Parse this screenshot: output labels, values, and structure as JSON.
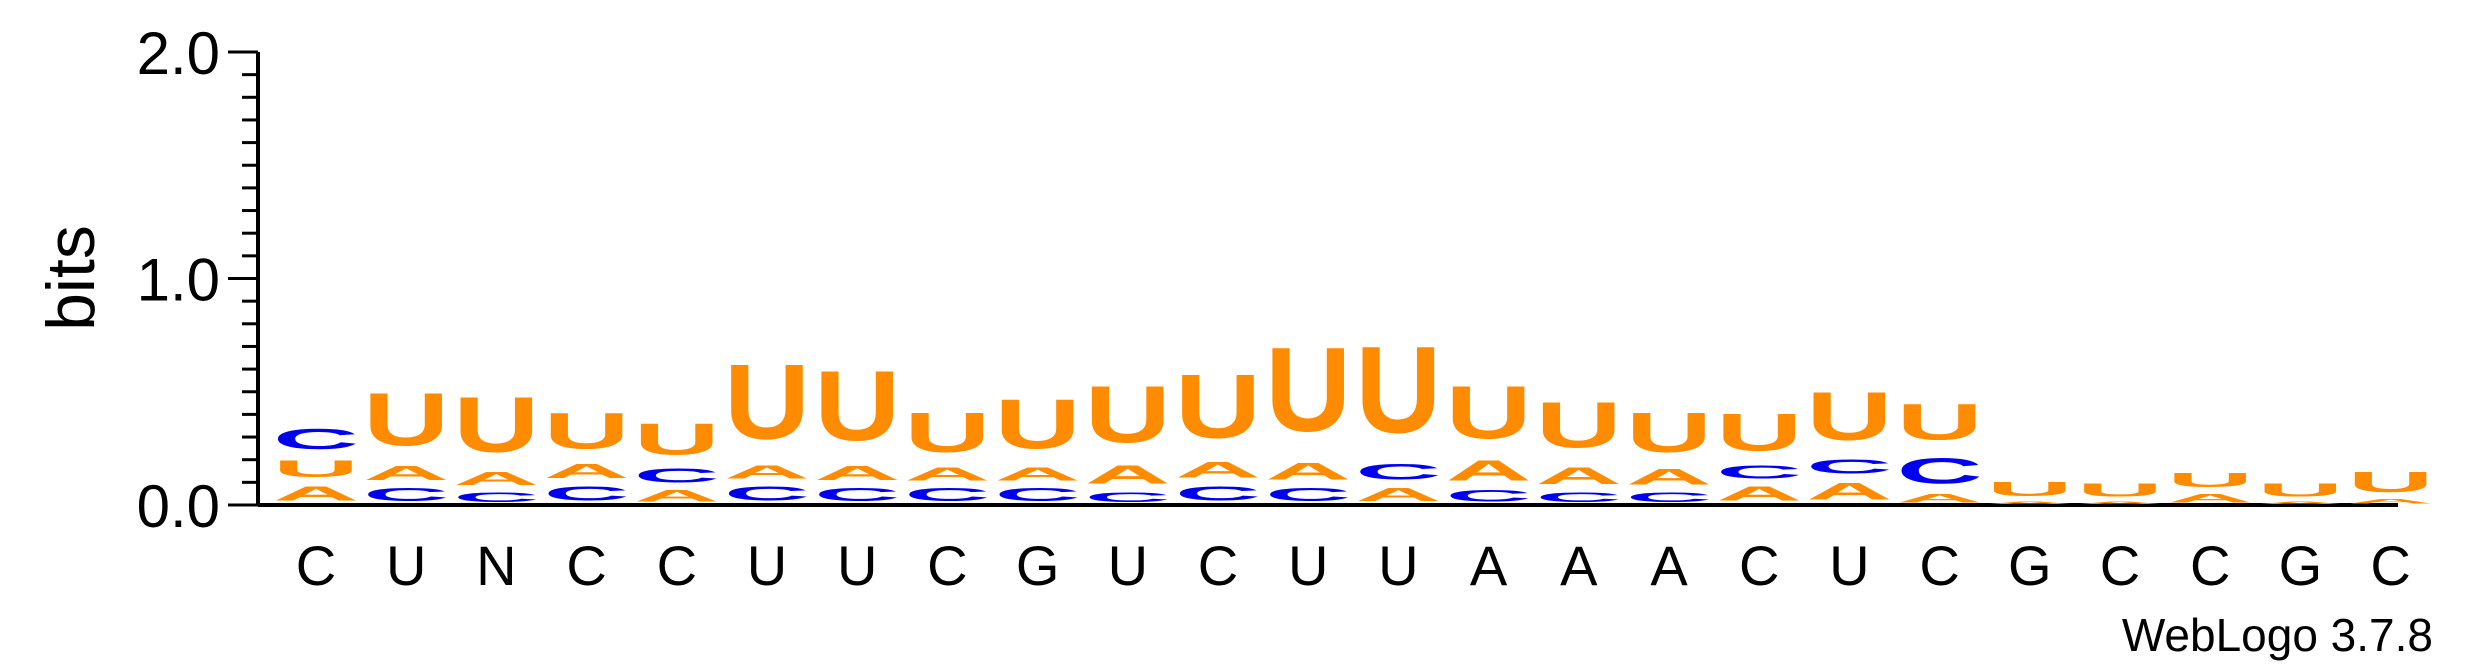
{
  "chart_data": {
    "type": "sequence-logo",
    "ylabel": "bits",
    "ylim": [
      0,
      2.0
    ],
    "yticks": [
      "0.0",
      "1.0",
      "2.0"
    ],
    "colors": {
      "U": "#ff8c00",
      "A": "#ff8c00",
      "C": "#0000ee",
      "G": "#ff8c00",
      "N": "#ff8c00"
    },
    "positions": [
      {
        "consensus": "C",
        "stack": [
          {
            "l": "A",
            "h": 0.1
          },
          {
            "l": "U",
            "h": 0.12
          },
          {
            "l": "C",
            "h": 0.14
          }
        ]
      },
      {
        "consensus": "U",
        "stack": [
          {
            "l": "C",
            "h": 0.09
          },
          {
            "l": "A",
            "h": 0.1
          },
          {
            "l": "U",
            "h": 0.37
          }
        ]
      },
      {
        "consensus": "N",
        "stack": [
          {
            "l": "C",
            "h": 0.07
          },
          {
            "l": "A",
            "h": 0.09
          },
          {
            "l": "U",
            "h": 0.39
          }
        ]
      },
      {
        "consensus": "C",
        "stack": [
          {
            "l": "C",
            "h": 0.1
          },
          {
            "l": "A",
            "h": 0.1
          },
          {
            "l": "U",
            "h": 0.25
          }
        ]
      },
      {
        "consensus": "C",
        "stack": [
          {
            "l": "A",
            "h": 0.08
          },
          {
            "l": "C",
            "h": 0.1
          },
          {
            "l": "U",
            "h": 0.22
          }
        ]
      },
      {
        "consensus": "U",
        "stack": [
          {
            "l": "C",
            "h": 0.1
          },
          {
            "l": "A",
            "h": 0.09
          },
          {
            "l": "U",
            "h": 0.53
          }
        ]
      },
      {
        "consensus": "U",
        "stack": [
          {
            "l": "C",
            "h": 0.09
          },
          {
            "l": "A",
            "h": 0.1
          },
          {
            "l": "U",
            "h": 0.49
          }
        ]
      },
      {
        "consensus": "C",
        "stack": [
          {
            "l": "C",
            "h": 0.09
          },
          {
            "l": "A",
            "h": 0.09
          },
          {
            "l": "U",
            "h": 0.28
          }
        ]
      },
      {
        "consensus": "G",
        "stack": [
          {
            "l": "C",
            "h": 0.09
          },
          {
            "l": "A",
            "h": 0.09
          },
          {
            "l": "U",
            "h": 0.35
          }
        ]
      },
      {
        "consensus": "U",
        "stack": [
          {
            "l": "C",
            "h": 0.07
          },
          {
            "l": "A",
            "h": 0.13
          },
          {
            "l": "U",
            "h": 0.4
          }
        ]
      },
      {
        "consensus": "C",
        "stack": [
          {
            "l": "C",
            "h": 0.1
          },
          {
            "l": "A",
            "h": 0.11
          },
          {
            "l": "U",
            "h": 0.45
          }
        ]
      },
      {
        "consensus": "U",
        "stack": [
          {
            "l": "C",
            "h": 0.09
          },
          {
            "l": "A",
            "h": 0.12
          },
          {
            "l": "U",
            "h": 0.59
          }
        ]
      },
      {
        "consensus": "U",
        "stack": [
          {
            "l": "A",
            "h": 0.09
          },
          {
            "l": "C",
            "h": 0.11
          },
          {
            "l": "U",
            "h": 0.61
          }
        ]
      },
      {
        "consensus": "A",
        "stack": [
          {
            "l": "C",
            "h": 0.08
          },
          {
            "l": "A",
            "h": 0.14
          },
          {
            "l": "U",
            "h": 0.37
          }
        ]
      },
      {
        "consensus": "A",
        "stack": [
          {
            "l": "C",
            "h": 0.07
          },
          {
            "l": "A",
            "h": 0.12
          },
          {
            "l": "U",
            "h": 0.32
          }
        ]
      },
      {
        "consensus": "A",
        "stack": [
          {
            "l": "C",
            "h": 0.07
          },
          {
            "l": "A",
            "h": 0.11
          },
          {
            "l": "U",
            "h": 0.28
          }
        ]
      },
      {
        "consensus": "C",
        "stack": [
          {
            "l": "A",
            "h": 0.1
          },
          {
            "l": "C",
            "h": 0.09
          },
          {
            "l": "U",
            "h": 0.26
          }
        ]
      },
      {
        "consensus": "U",
        "stack": [
          {
            "l": "A",
            "h": 0.12
          },
          {
            "l": "C",
            "h": 0.1
          },
          {
            "l": "U",
            "h": 0.34
          }
        ]
      },
      {
        "consensus": "C",
        "stack": [
          {
            "l": "A",
            "h": 0.06
          },
          {
            "l": "C",
            "h": 0.18
          },
          {
            "l": "U",
            "h": 0.25
          }
        ]
      },
      {
        "consensus": "G",
        "stack": [
          {
            "l": "A",
            "h": 0.02
          },
          {
            "l": "U",
            "h": 0.1
          }
        ]
      },
      {
        "consensus": "C",
        "stack": [
          {
            "l": "A",
            "h": 0.02
          },
          {
            "l": "U",
            "h": 0.09
          }
        ]
      },
      {
        "consensus": "C",
        "stack": [
          {
            "l": "A",
            "h": 0.06
          },
          {
            "l": "U",
            "h": 0.1
          }
        ]
      },
      {
        "consensus": "G",
        "stack": [
          {
            "l": "A",
            "h": 0.02
          },
          {
            "l": "U",
            "h": 0.09
          }
        ]
      },
      {
        "consensus": "C",
        "stack": [
          {
            "l": "A",
            "h": 0.03
          },
          {
            "l": "U",
            "h": 0.14
          }
        ]
      }
    ]
  },
  "footer": {
    "credit": "WebLogo 3.7.8"
  }
}
